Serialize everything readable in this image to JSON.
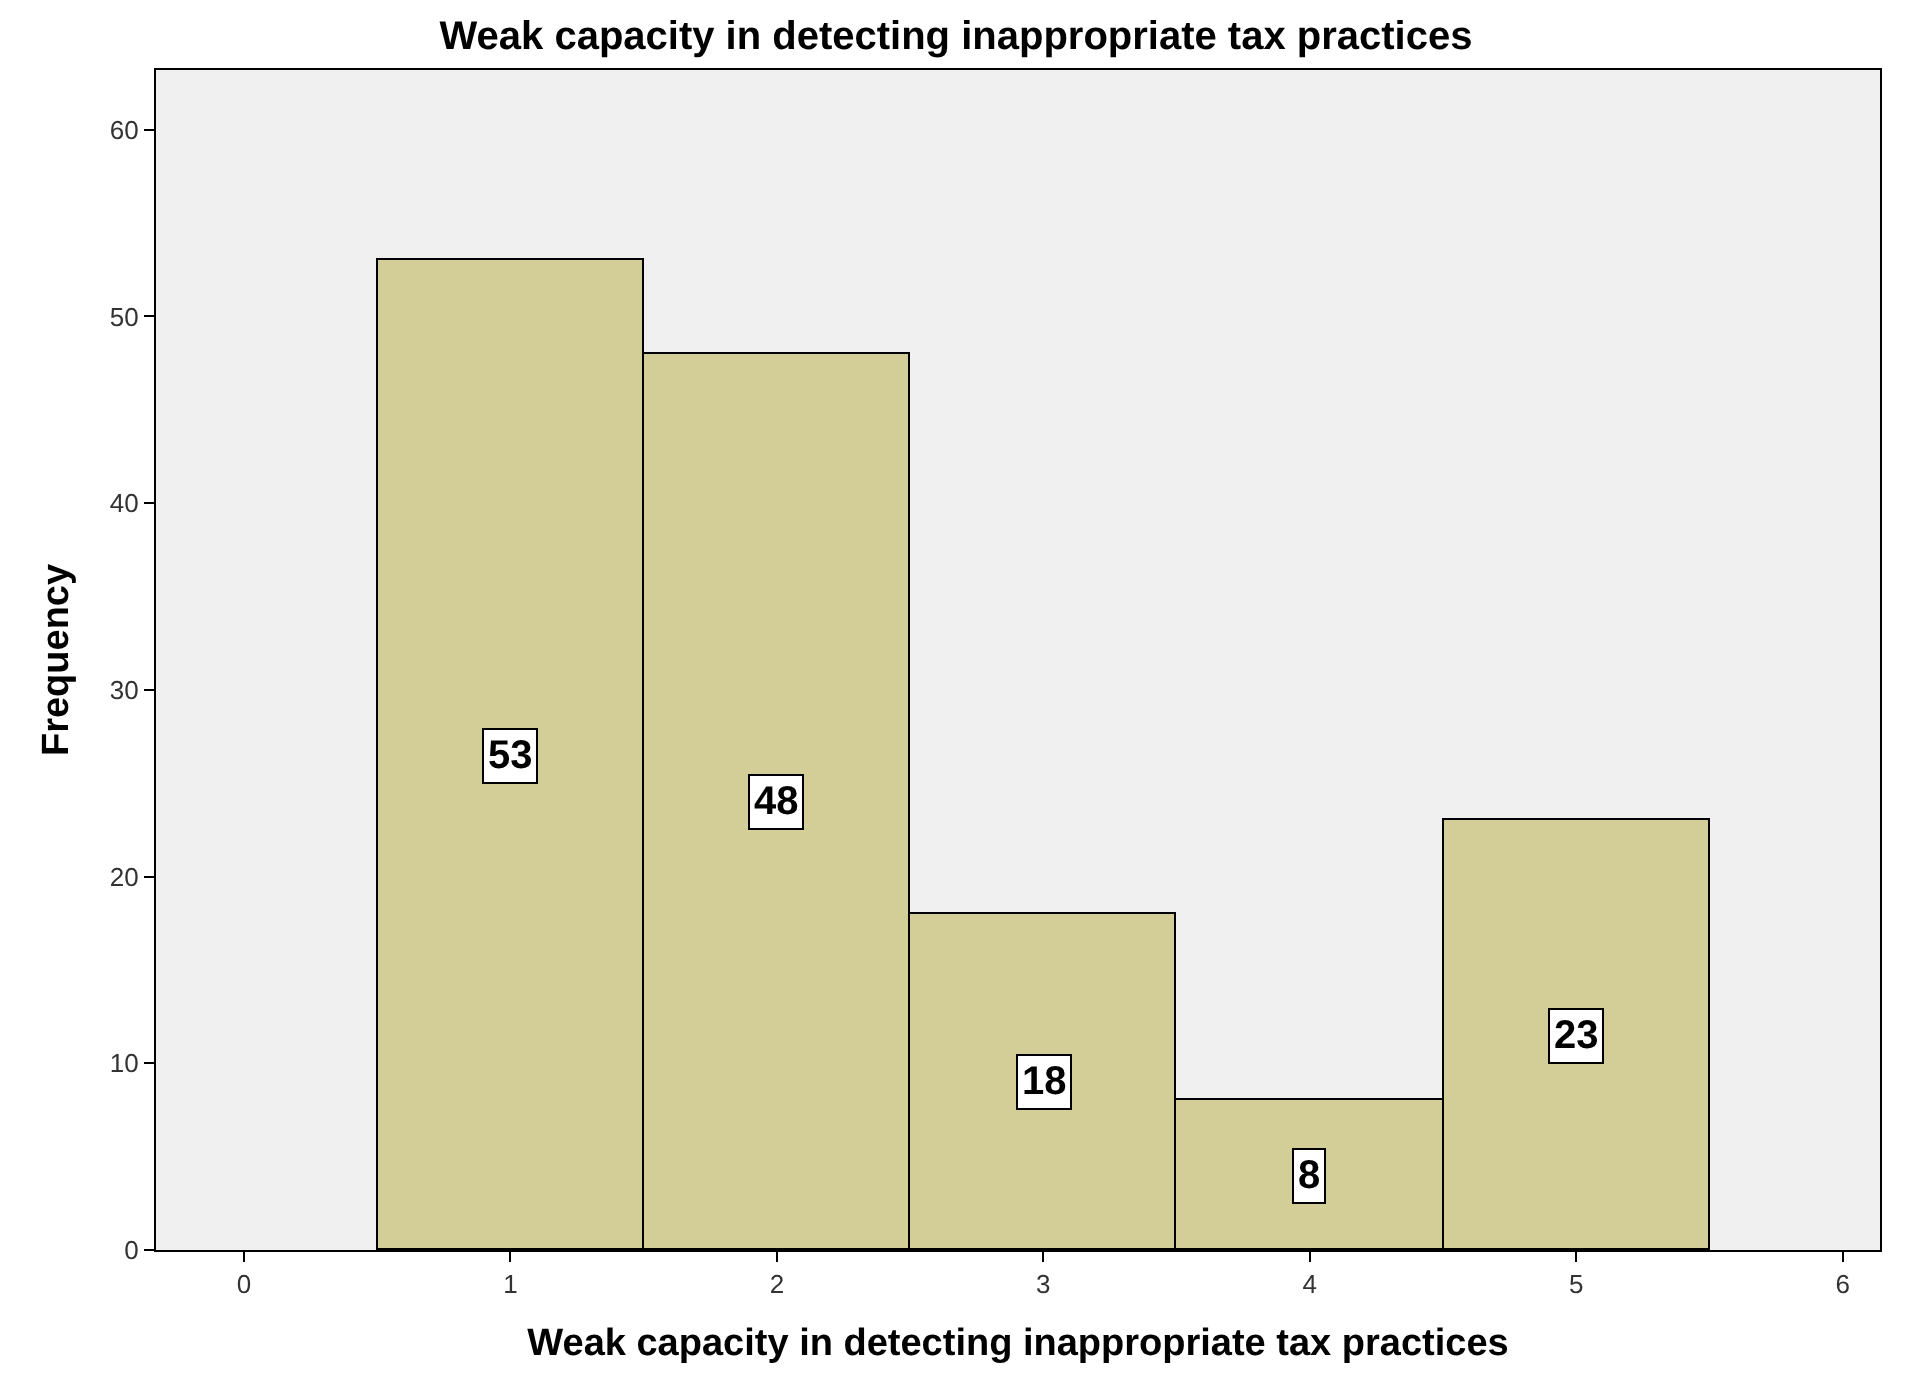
{
  "chart_data": {
    "type": "histogram",
    "title": "Weak capacity in detecting inappropriate tax practices",
    "xlabel": "Weak capacity in detecting inappropriate tax practices",
    "ylabel": "Frequency",
    "bins": [
      0.5,
      1.5,
      2.5,
      3.5,
      4.5,
      5.5
    ],
    "values": [
      53,
      48,
      18,
      8,
      23
    ],
    "color": "#d3ce97",
    "data_labels": true,
    "xlim": [
      -0.33,
      6.14
    ],
    "xticks": [
      0,
      1,
      2,
      3,
      4,
      5,
      6
    ],
    "ylim": [
      0,
      63.2
    ],
    "yticks": [
      0,
      10,
      20,
      30,
      40,
      50,
      60
    ],
    "grid": false
  }
}
